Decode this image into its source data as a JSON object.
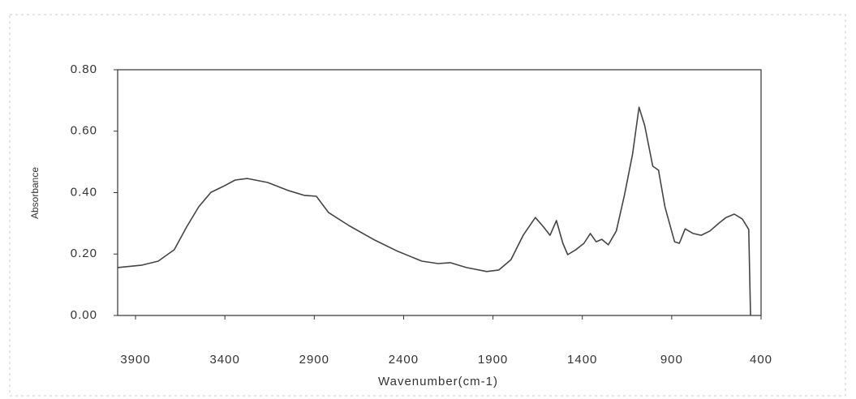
{
  "chart_data": {
    "type": "line",
    "xlabel": "Wavenumber(cm-1)",
    "ylabel": "Absorbance",
    "x": [
      4000,
      3864,
      3773,
      3683,
      3614,
      3546,
      3478,
      3410,
      3342,
      3274,
      3161,
      3047,
      2956,
      2888,
      2820,
      2707,
      2570,
      2434,
      2298,
      2207,
      2139,
      2049,
      1935,
      1867,
      1799,
      1731,
      1663,
      1617,
      1581,
      1545,
      1509,
      1482,
      1436,
      1391,
      1355,
      1323,
      1291,
      1255,
      1210,
      1164,
      1119,
      1083,
      1051,
      1006,
      974,
      938,
      884,
      857,
      825,
      780,
      735,
      686,
      641,
      596,
      550,
      505,
      469,
      459
    ],
    "series": [
      {
        "name": "Absorbance",
        "color": "#444444",
        "values": [
          0.156,
          0.164,
          0.177,
          0.214,
          0.288,
          0.354,
          0.401,
          0.42,
          0.441,
          0.446,
          0.433,
          0.407,
          0.391,
          0.388,
          0.335,
          0.293,
          0.248,
          0.209,
          0.177,
          0.169,
          0.172,
          0.156,
          0.143,
          0.148,
          0.182,
          0.261,
          0.319,
          0.288,
          0.261,
          0.309,
          0.235,
          0.198,
          0.214,
          0.235,
          0.267,
          0.24,
          0.248,
          0.23,
          0.275,
          0.393,
          0.525,
          0.678,
          0.618,
          0.486,
          0.473,
          0.354,
          0.24,
          0.235,
          0.282,
          0.267,
          0.261,
          0.275,
          0.298,
          0.319,
          0.33,
          0.314,
          0.28,
          0
        ]
      }
    ],
    "xlim": [
      4000,
      400
    ],
    "xticks": [
      3900,
      3400,
      2900,
      2400,
      1900,
      1400,
      900,
      400
    ],
    "ylim": [
      0,
      0.8
    ],
    "yticks": [
      {
        "value": 0,
        "label": "0.00"
      },
      {
        "value": 0.2,
        "label": "0.20"
      },
      {
        "value": 0.4,
        "label": "0.40"
      },
      {
        "value": 0.6,
        "label": "0.60"
      },
      {
        "value": 0.8,
        "label": "0.80"
      }
    ],
    "grid": false
  }
}
